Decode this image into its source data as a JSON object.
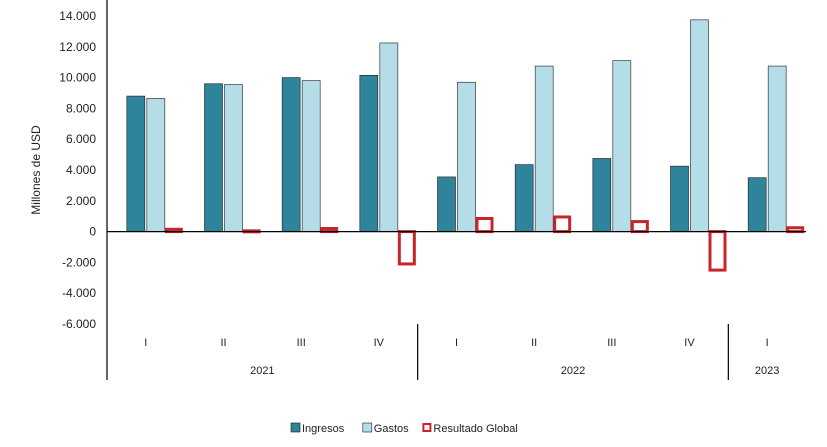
{
  "chart_data": {
    "type": "bar",
    "ylabel": "Millones de USD",
    "ylim": [
      -6000,
      14000
    ],
    "yticks": [
      {
        "value": 14000,
        "label": "14.000"
      },
      {
        "value": 12000,
        "label": "12.000"
      },
      {
        "value": 10000,
        "label": "10.000"
      },
      {
        "value": 8000,
        "label": "8.000"
      },
      {
        "value": 6000,
        "label": "6.000"
      },
      {
        "value": 4000,
        "label": "4.000"
      },
      {
        "value": 2000,
        "label": "2.000"
      },
      {
        "value": 0,
        "label": "0"
      },
      {
        "value": -2000,
        "label": "-2.000"
      },
      {
        "value": -4000,
        "label": "-4.000"
      },
      {
        "value": -6000,
        "label": "-6.000"
      }
    ],
    "categories": [
      "I",
      "II",
      "III",
      "IV",
      "I",
      "II",
      "III",
      "IV",
      "I"
    ],
    "years": [
      {
        "label": "2021",
        "quarters": 4
      },
      {
        "label": "2022",
        "quarters": 4
      },
      {
        "label": "2023",
        "quarters": 1
      }
    ],
    "series": [
      {
        "name": "Ingresos",
        "style": "filled",
        "color": "#2E849B",
        "values": [
          8800,
          9600,
          10000,
          10150,
          3550,
          4350,
          4750,
          4250,
          3500
        ]
      },
      {
        "name": "Gastos",
        "style": "filled",
        "color": "#B5DDE7",
        "values": [
          8650,
          9550,
          9800,
          12250,
          9700,
          10750,
          11100,
          13750,
          10750
        ]
      },
      {
        "name": "Resultado Global",
        "style": "outline",
        "color": "#C8242B",
        "values": [
          150,
          50,
          200,
          -2100,
          850,
          950,
          650,
          -2500,
          250
        ]
      }
    ],
    "legend_position": "bottom-center",
    "grid": false
  }
}
